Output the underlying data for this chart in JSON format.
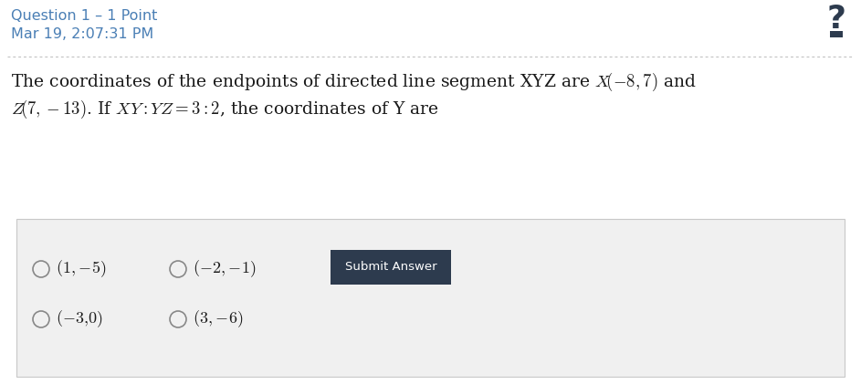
{
  "title_line1": "Question 1 – 1 Point",
  "title_line2": "Mar 19, 2:07:31 PM",
  "title_color": "#4a7fb5",
  "bg_color": "#ffffff",
  "submit_button_text": "Submit Answer",
  "submit_bg": "#2d3b4e",
  "submit_text_color": "#ffffff",
  "answer_box_bg": "#f0f0f0",
  "answer_box_border": "#c8c8c8",
  "dotted_line_color": "#bbbbbb",
  "question_mark_color": "#2d3b4e",
  "font_size_title": 11.5,
  "font_size_question": 13.5,
  "font_size_choices": 13,
  "fig_width": 9.43,
  "fig_height": 4.21,
  "dpi": 100
}
